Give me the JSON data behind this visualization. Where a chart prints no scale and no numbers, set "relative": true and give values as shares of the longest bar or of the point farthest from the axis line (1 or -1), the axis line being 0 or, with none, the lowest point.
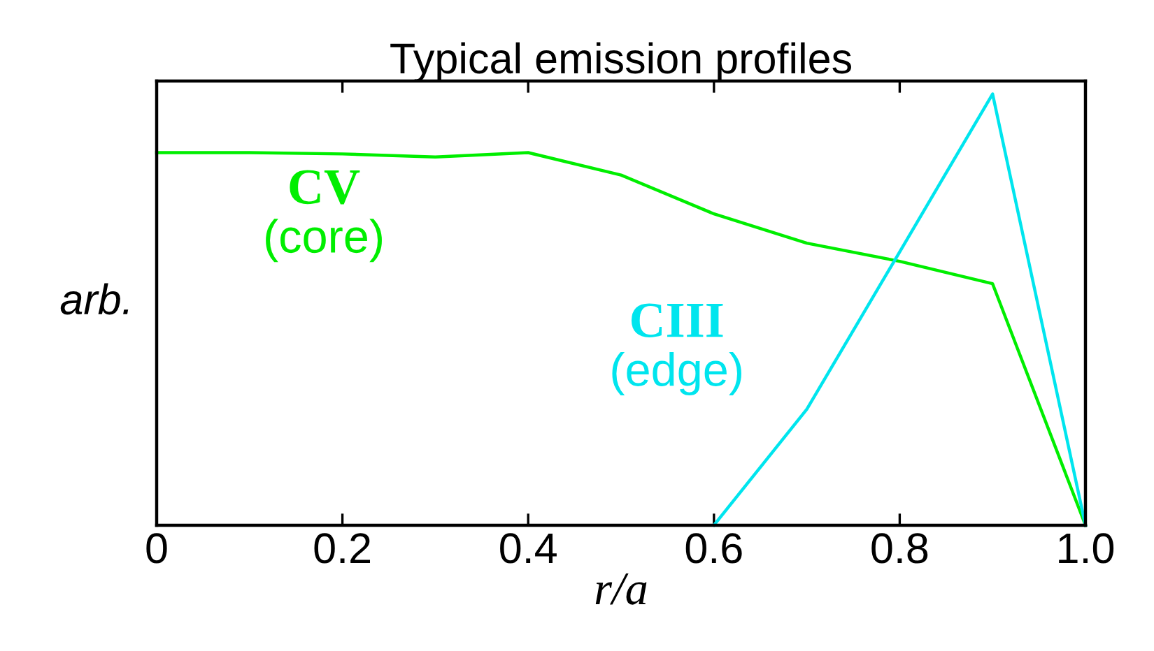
{
  "chart_data": {
    "type": "line",
    "title": "Typical emission profiles",
    "xlabel": "r/a",
    "ylabel": "arb.",
    "relative": true,
    "xlim": [
      0,
      1
    ],
    "xticks": [
      0,
      0.2,
      0.4,
      0.6,
      0.8,
      {
        "value": 1,
        "label": "1.0"
      }
    ],
    "grid": false,
    "legend": false,
    "marker": "none",
    "line_style": "solid",
    "series": [
      {
        "name": "CV (core)",
        "color": "#00ee00",
        "x": [
          0,
          0.1,
          0.2,
          0.3,
          0.4,
          0.5,
          0.6,
          0.7,
          0.8,
          0.9,
          1.0
        ],
        "values": [
          0.864,
          0.864,
          0.861,
          0.854,
          0.864,
          0.812,
          0.722,
          0.654,
          0.612,
          0.56,
          0
        ]
      },
      {
        "name": "CIII (edge)",
        "color": "#00e5ee",
        "x": [
          0.6,
          0.7,
          0.8,
          0.9,
          1.0
        ],
        "values": [
          0,
          0.269,
          0.634,
          1,
          0
        ]
      }
    ]
  }
}
